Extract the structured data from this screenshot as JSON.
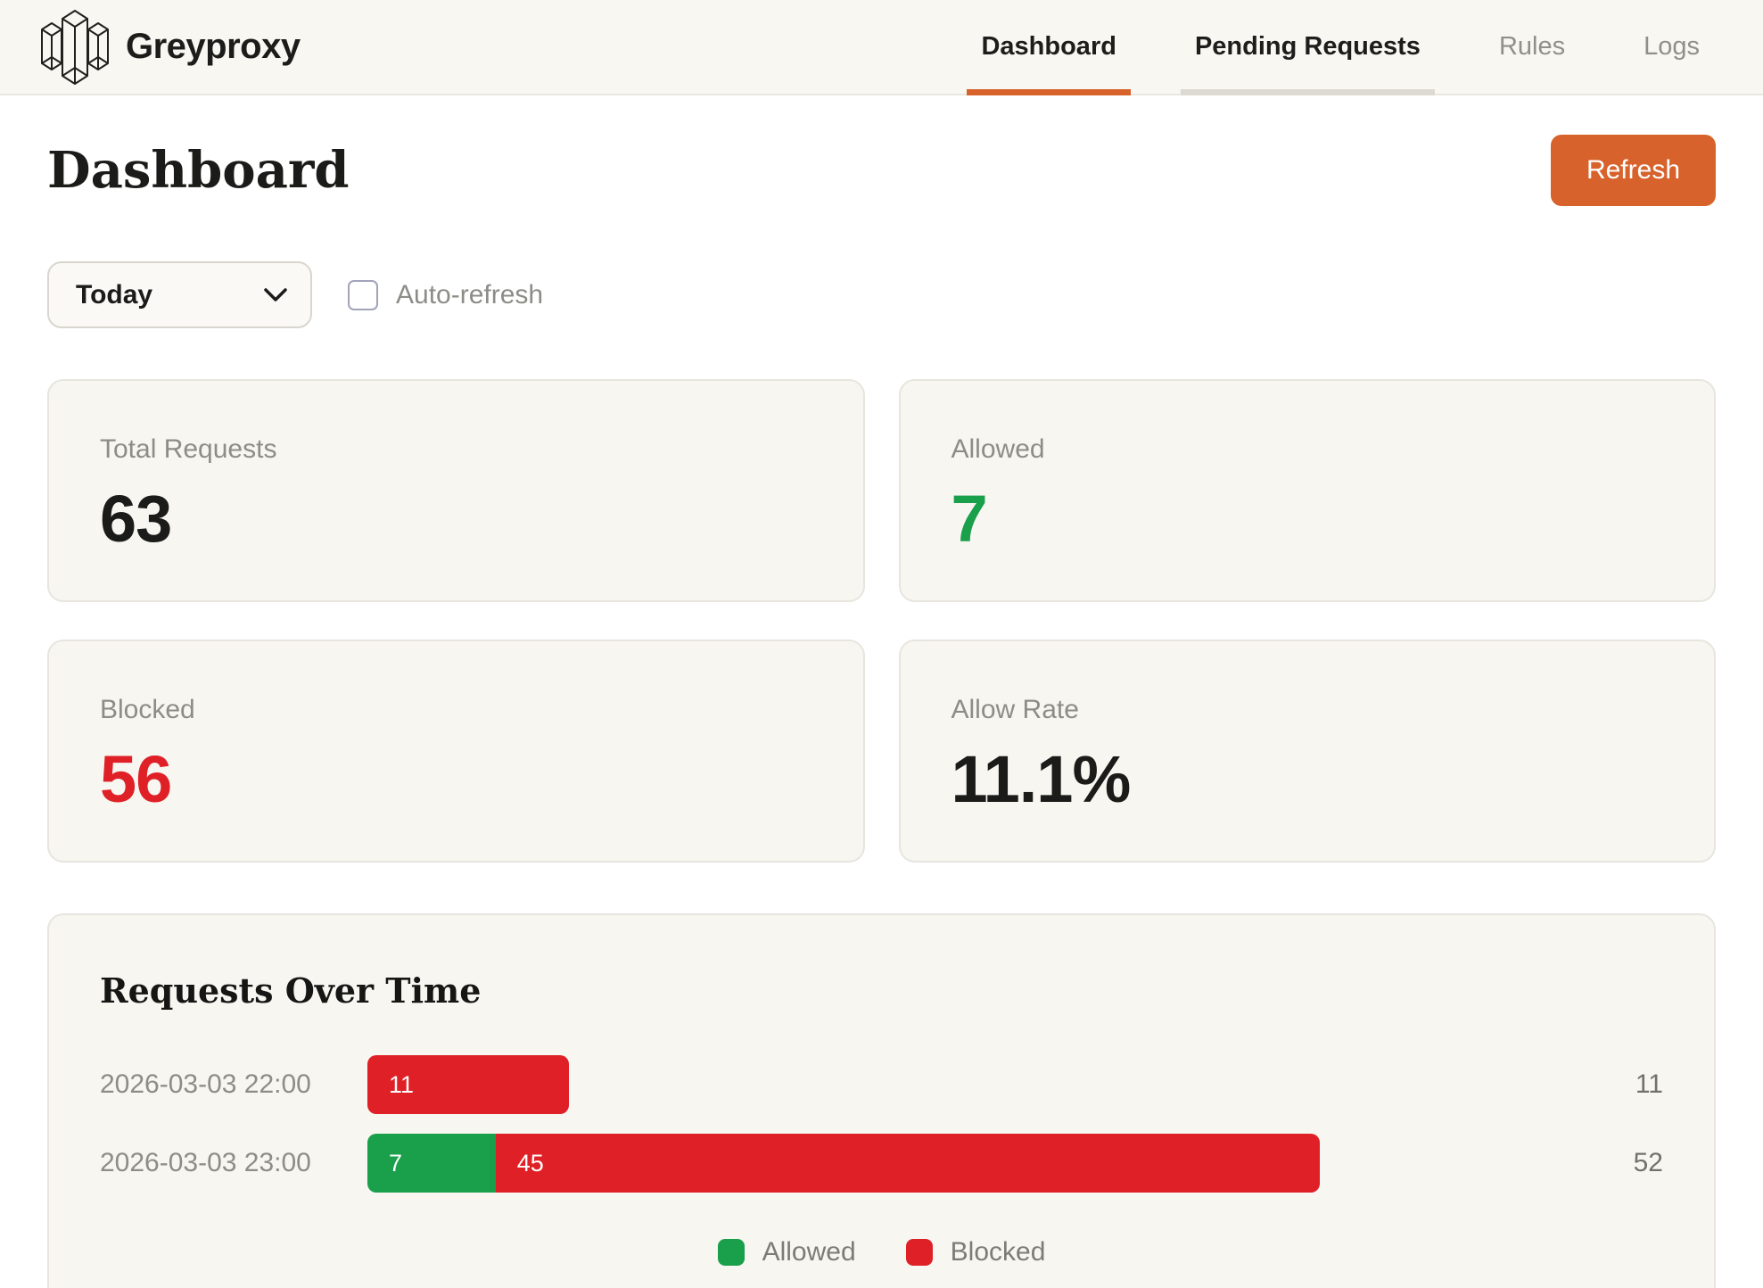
{
  "app": {
    "name": "Greyproxy"
  },
  "nav": {
    "items": [
      {
        "label": "Dashboard",
        "state": "active"
      },
      {
        "label": "Pending Requests",
        "state": "hovered"
      },
      {
        "label": "Rules",
        "state": "normal"
      },
      {
        "label": "Logs",
        "state": "normal"
      }
    ]
  },
  "page": {
    "title": "Dashboard",
    "refresh_label": "Refresh"
  },
  "controls": {
    "period_selected": "Today",
    "auto_refresh_label": "Auto-refresh",
    "auto_refresh_checked": false
  },
  "stats": [
    {
      "label": "Total Requests",
      "value": "63",
      "color": "#1b1b19"
    },
    {
      "label": "Allowed",
      "value": "7",
      "color": "#1a9f4b"
    },
    {
      "label": "Blocked",
      "value": "56",
      "color": "#df2127"
    },
    {
      "label": "Allow Rate",
      "value": "11.1%",
      "color": "#1b1b19"
    }
  ],
  "chart_data": {
    "type": "bar",
    "orientation": "horizontal",
    "stacked": true,
    "title": "Requests Over Time",
    "categories": [
      "2026-03-03 22:00",
      "2026-03-03 23:00"
    ],
    "series": [
      {
        "name": "Allowed",
        "color": "#1a9f4b",
        "values": [
          0,
          7
        ]
      },
      {
        "name": "Blocked",
        "color": "#df2127",
        "values": [
          11,
          45
        ]
      }
    ],
    "totals": [
      11,
      52
    ],
    "max_total": 52,
    "legend": [
      "Allowed",
      "Blocked"
    ],
    "legend_position": "bottom"
  },
  "colors": {
    "accent_orange": "#d7622b",
    "green": "#1a9f4b",
    "red": "#df2127",
    "card_bg": "#f7f6f1",
    "header_bg": "#f8f7f2"
  }
}
